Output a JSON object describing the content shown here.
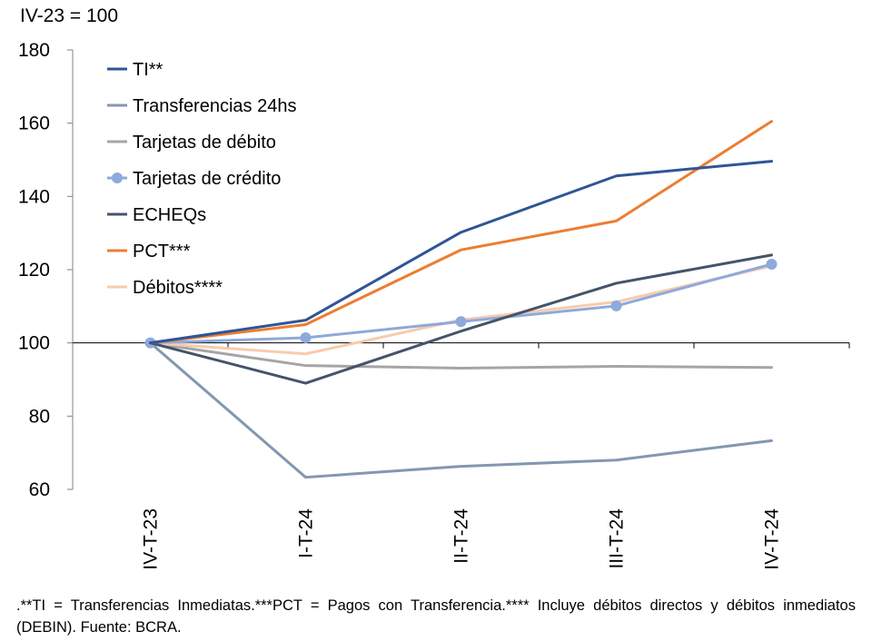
{
  "unit_label": "IV-23 = 100",
  "footnote": ".**TI = Transferencias Inmediatas.***PCT = Pagos con Transferencia.**** Incluye débitos directos y débitos inmediatos (DEBIN). Fuente: BCRA.",
  "chart_data": {
    "type": "line",
    "title": "",
    "xlabel": "",
    "ylabel": "IV-23 = 100",
    "categories": [
      "IV-T-23",
      "I-T-24",
      "II-T-24",
      "III-T-24",
      "IV-T-24"
    ],
    "ylim": [
      60,
      180
    ],
    "yticks": [
      60,
      80,
      100,
      120,
      140,
      160,
      180
    ],
    "x_axis_crosses_at": 100,
    "grid": false,
    "legend_position": "top-left",
    "series": [
      {
        "name": "TI**",
        "values": [
          100,
          106.2,
          130.2,
          145.6,
          149.6
        ],
        "color": "#2F5597",
        "marker": false
      },
      {
        "name": "Transferencias 24hs",
        "values": [
          100,
          63.3,
          66.3,
          68.0,
          73.3
        ],
        "color": "#8497B0",
        "marker": false
      },
      {
        "name": "Tarjetas de débito",
        "values": [
          100,
          93.8,
          93.1,
          93.6,
          93.3
        ],
        "color": "#A5A5A5",
        "marker": false
      },
      {
        "name": "Tarjetas de crédito",
        "values": [
          100,
          101.4,
          105.8,
          110.1,
          121.5
        ],
        "color": "#8EA9DB",
        "marker": true
      },
      {
        "name": "ECHEQs",
        "values": [
          100,
          89.0,
          103.2,
          116.3,
          124.0
        ],
        "color": "#44546A",
        "marker": false
      },
      {
        "name": "PCT***",
        "values": [
          100,
          105.0,
          125.4,
          133.3,
          160.5
        ],
        "color": "#ED7D31",
        "marker": false
      },
      {
        "name": "Débitos****",
        "values": [
          100,
          97.0,
          106.3,
          111.2,
          121.0
        ],
        "color": "#F8CBAD",
        "marker": false
      }
    ]
  }
}
